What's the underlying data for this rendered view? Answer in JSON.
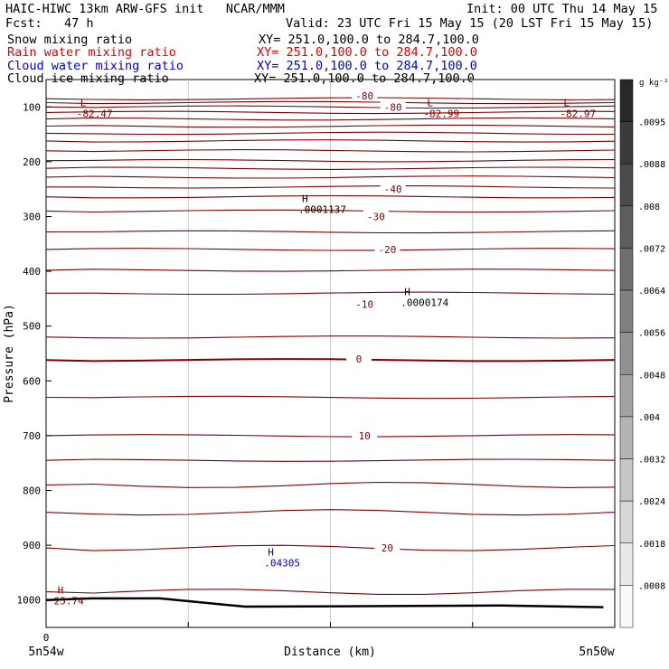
{
  "header": {
    "title_left": "HAIC-HIWC 13km ARW-GFS init   NCAR/MMM",
    "init": "Init: 00 UTC Thu 14 May 15",
    "fcst": "Fcst:   47 h",
    "valid": "Valid: 23 UTC Fri 15 May 15 (20 LST Fri 15 May 15)",
    "fields": [
      {
        "name": "Snow mixing ratio",
        "xy": "XY= 251.0,100.0 to 284.7,100.0",
        "color": "#000000"
      },
      {
        "name": "Rain water mixing ratio",
        "xy": "XY= 251.0,100.0 to 284.7,100.0",
        "color": "#dd0000"
      },
      {
        "name": "Cloud water mixing ratio",
        "xy": "XY= 251.0,100.0 to 284.7,100.0",
        "color": "#0000cc"
      },
      {
        "name": "Cloud ice mixing ratio",
        "xy": "XY= 251.0,100.0 to 284.7,100.0",
        "color": "#000000"
      }
    ]
  },
  "chart_data": {
    "type": "line",
    "title": "",
    "xlabel": "Distance (km)",
    "ylabel": "Pressure (hPa)",
    "x_ticks": [
      {
        "label": "0",
        "pos": 0
      }
    ],
    "x_end_labels": [
      "5n54w",
      "5n50w"
    ],
    "y_ticks": [
      100,
      200,
      300,
      400,
      500,
      600,
      700,
      800,
      900,
      1000
    ],
    "y_range": [
      50,
      1050
    ],
    "contour_color": "#800000",
    "contour_labels": [
      {
        "text": "-80",
        "p": 80,
        "x": 0.56
      },
      {
        "text": "-80",
        "p": 100,
        "x": 0.61
      },
      {
        "text": "-40",
        "p": 250,
        "x": 0.61
      },
      {
        "text": "-30",
        "p": 300,
        "x": 0.58
      },
      {
        "text": "-20",
        "p": 360,
        "x": 0.6
      },
      {
        "text": "-10",
        "p": 460,
        "x": 0.56
      },
      {
        "text": "0",
        "p": 560,
        "x": 0.55
      },
      {
        "text": "10",
        "p": 700,
        "x": 0.56
      },
      {
        "text": "20",
        "p": 905,
        "x": 0.6
      }
    ],
    "extrema": [
      {
        "type": "L",
        "value": "-82.47",
        "p": 105,
        "x": 0.06,
        "color": "#800000"
      },
      {
        "type": "L",
        "value": "-82.99",
        "p": 105,
        "x": 0.67,
        "color": "#800000"
      },
      {
        "type": "L",
        "value": "-82.97",
        "p": 105,
        "x": 0.91,
        "color": "#800000"
      },
      {
        "type": "H",
        "value": ".0001137",
        "p": 280,
        "x": 0.45,
        "color": "#000000"
      },
      {
        "type": "H",
        "value": ".0000174",
        "p": 450,
        "x": 0.63,
        "color": "#000000"
      },
      {
        "type": "H",
        "value": ".04305",
        "p": 925,
        "x": 0.39,
        "color": "#0000cc"
      },
      {
        "type": "H",
        "value": "25.74",
        "p": 995,
        "x": 0.02,
        "color": "#800000"
      }
    ],
    "colorbar": {
      "unit": "g kg⁻¹",
      "labels": [
        ".0095",
        ".0088",
        ".008",
        ".0072",
        ".0064",
        ".0056",
        ".0048",
        ".004",
        ".0032",
        ".0024",
        ".0018",
        ".0008"
      ]
    }
  }
}
